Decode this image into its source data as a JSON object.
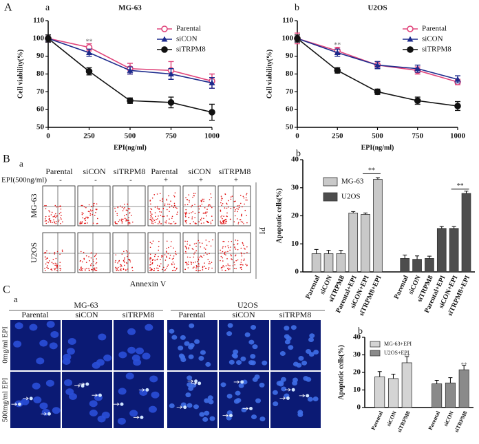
{
  "panels": {
    "A": "A",
    "B": "B",
    "C": "C"
  },
  "flow": {
    "label": "a",
    "columns": [
      "Parental",
      "siCON",
      "siTRPM8",
      "Parental",
      "siCON",
      "siTRPM8"
    ],
    "treatment_label": "EPI(500ng/ml)",
    "treatment": [
      "-",
      "-",
      "-",
      "+",
      "+",
      "+"
    ],
    "rows": [
      "MG-63",
      "U2OS"
    ],
    "y_label": "PI",
    "x_label": "Annexin V"
  },
  "microscopy": {
    "label": "a",
    "groups": [
      "MG-63",
      "U2OS"
    ],
    "columns": [
      "Parental",
      "siCON",
      "siTRPM8",
      "Parental",
      "siCON",
      "siTRPM8"
    ],
    "rows": [
      "0mg/ml EPI",
      "500mg/ml EPI"
    ]
  },
  "chart_data": [
    {
      "type": "line",
      "panel": "a",
      "title": "MG-63",
      "x_label": "EPI(ng/ml)",
      "y_label": "Cell viability(%)",
      "x": [
        0,
        250,
        500,
        750,
        1000
      ],
      "xlim": [
        0,
        1000
      ],
      "xticks": [
        0,
        250,
        500,
        750,
        1000
      ],
      "ylim": [
        50,
        110
      ],
      "yticks": [
        50,
        60,
        70,
        80,
        90,
        100,
        110
      ],
      "legend": "upper right",
      "series": [
        {
          "name": "Parental",
          "color": "#e0457b",
          "marker": "circle-open",
          "values": [
            100,
            95,
            83,
            82,
            76
          ],
          "errors": [
            2,
            2,
            3,
            5,
            4
          ]
        },
        {
          "name": "siCON",
          "color": "#1c2a8c",
          "marker": "triangle",
          "values": [
            100,
            92,
            82,
            80,
            75
          ],
          "errors": [
            2,
            2,
            2,
            3,
            3
          ]
        },
        {
          "name": "siTRPM8",
          "color": "#111111",
          "marker": "circle",
          "values": [
            100,
            81.5,
            65,
            64,
            58.5
          ],
          "errors": [
            2,
            2,
            1.5,
            3,
            4.5
          ]
        }
      ],
      "annotations": [
        {
          "text": "**",
          "x": 250,
          "y": 98
        }
      ]
    },
    {
      "type": "line",
      "panel": "b",
      "title": "U2OS",
      "x_label": "EPI(ng/ml)",
      "y_label": "Cell viability(%)",
      "x": [
        0,
        250,
        500,
        750,
        1000
      ],
      "xlim": [
        0,
        1000
      ],
      "xticks": [
        0,
        250,
        500,
        750,
        1000
      ],
      "ylim": [
        50,
        110
      ],
      "yticks": [
        50,
        60,
        70,
        80,
        90,
        100,
        110
      ],
      "legend": "upper right",
      "series": [
        {
          "name": "Parental",
          "color": "#e0457b",
          "marker": "circle-open",
          "values": [
            100,
            93,
            85,
            82,
            75.5
          ],
          "errors": [
            3,
            2,
            2,
            2,
            1.5
          ]
        },
        {
          "name": "siCON",
          "color": "#1c2a8c",
          "marker": "triangle",
          "values": [
            100,
            92,
            85,
            83,
            77
          ],
          "errors": [
            2,
            2,
            2,
            2,
            2
          ]
        },
        {
          "name": "siTRPM8",
          "color": "#111111",
          "marker": "circle",
          "values": [
            100,
            82,
            70,
            65,
            62
          ],
          "errors": [
            2,
            1.5,
            1.5,
            2,
            2.5
          ]
        }
      ],
      "annotations": [
        {
          "text": "**",
          "x": 250,
          "y": 96
        }
      ]
    },
    {
      "type": "bar",
      "panel": "b",
      "y_label": "Apoptotic cells(%)",
      "categories": [
        "Parental",
        "siCON",
        "siTRPM8",
        "Parental+EPI",
        "siCON+EPI",
        "siTRPM8+EPI"
      ],
      "ylim": [
        0,
        40
      ],
      "yticks": [
        0,
        10,
        20,
        30,
        40
      ],
      "legend": "upper left",
      "series": [
        {
          "name": "MG-63",
          "color": "#c9c9c9",
          "values": [
            6.5,
            6.5,
            6.5,
            21,
            20.5,
            33
          ],
          "errors": [
            1.5,
            1.2,
            1.2,
            0.5,
            0.5,
            0.6
          ]
        },
        {
          "name": "U2OS",
          "color": "#4d4d4d",
          "values": [
            4.8,
            4.5,
            4.8,
            15.5,
            15.5,
            28
          ],
          "errors": [
            1.2,
            1.2,
            0.8,
            0.7,
            0.7,
            0.8
          ]
        }
      ],
      "annotations": [
        {
          "text": "**",
          "y": 35
        },
        {
          "text": "**",
          "y": 29.5
        }
      ]
    },
    {
      "type": "bar",
      "panel": "b",
      "y_label": "Apoptotic cells(%)",
      "categories": [
        "Parental",
        "siCON",
        "siTRPM8"
      ],
      "ylim": [
        0,
        40
      ],
      "yticks": [
        0,
        10,
        20,
        30,
        40
      ],
      "legend": "upper left",
      "series": [
        {
          "name": "MG-63+EPI",
          "color": "#d4d4d4",
          "values": [
            17.5,
            16.5,
            25.5
          ],
          "errors": [
            3,
            2.5,
            3.5
          ]
        },
        {
          "name": "U2OS+EPI",
          "color": "#8a8a8a",
          "values": [
            13.5,
            14,
            21.5
          ],
          "errors": [
            2,
            3,
            2.5
          ]
        }
      ],
      "annotations": [
        {
          "text": "**",
          "y": 29
        },
        {
          "text": "**",
          "y": 24
        }
      ]
    }
  ]
}
